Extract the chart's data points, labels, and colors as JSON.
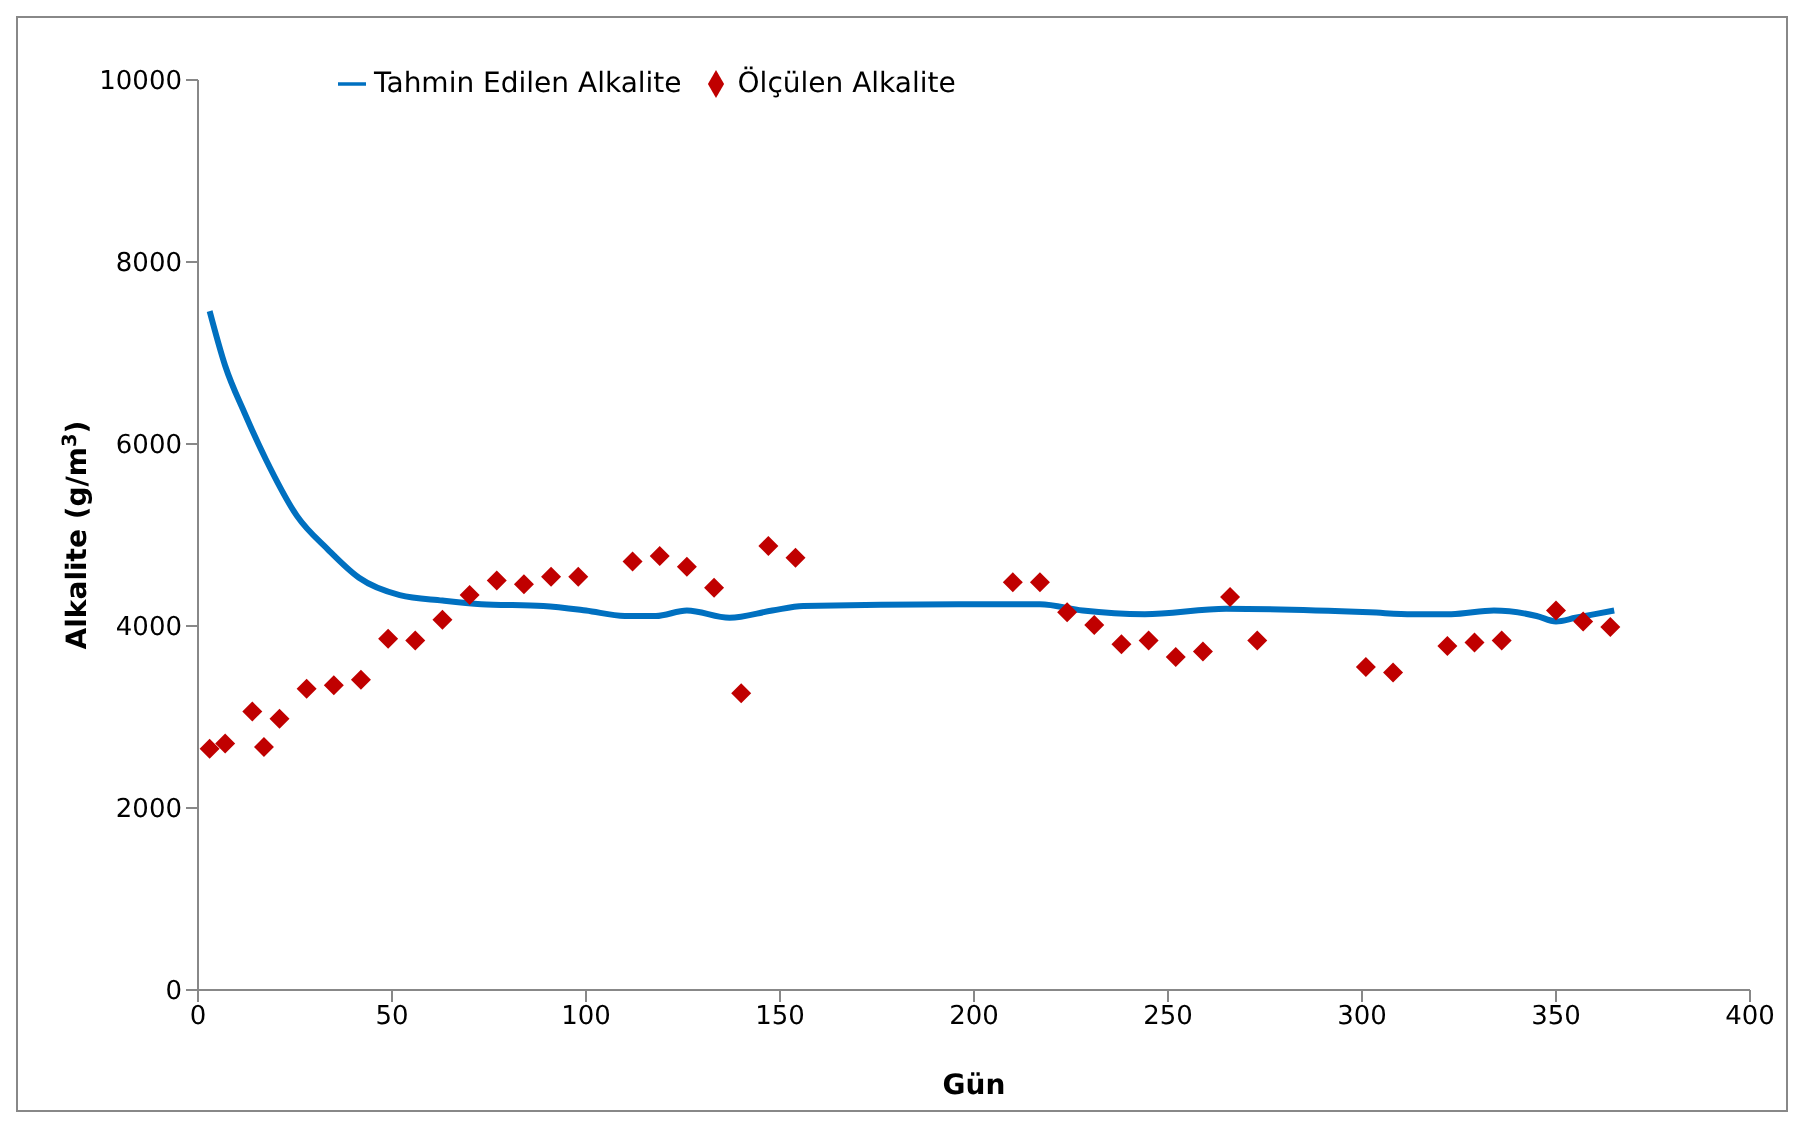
{
  "chart_data": {
    "type": "scatter",
    "xlabel": "Gün",
    "ylabel": "Alkalite (g/m$^{3}$)",
    "xlim": [
      0,
      400
    ],
    "xticks": [
      0,
      50,
      100,
      150,
      200,
      250,
      300,
      350,
      400
    ],
    "ylim": [
      0,
      10000
    ],
    "yticks": [
      0,
      2000,
      4000,
      6000,
      8000,
      10000
    ],
    "grid": false,
    "legend": "top left",
    "series": [
      {
        "name": "Tahmin Edilen Alkalite",
        "type": "line",
        "color": "#0070c0",
        "marker": "none",
        "line_style": "solid",
        "x": [
          3,
          7,
          12,
          17.5,
          25.5,
          33.5,
          41.5,
          52,
          63,
          73,
          89,
          100,
          110,
          118,
          126,
          137,
          148,
          156,
          196,
          217,
          228,
          244,
          265,
          302,
          313,
          323,
          334,
          345,
          350,
          355,
          365
        ],
        "values": [
          7460,
          6860,
          6340,
          5830,
          5210,
          4840,
          4530,
          4340,
          4280,
          4240,
          4220,
          4170,
          4110,
          4110,
          4170,
          4090,
          4170,
          4220,
          4240,
          4240,
          4170,
          4130,
          4190,
          4150,
          4130,
          4130,
          4170,
          4110,
          4050,
          4090,
          4170
        ]
      },
      {
        "name": "Ölçülen Alkalite",
        "color": "#c00000",
        "marker": "diamond",
        "x": [
          3,
          7,
          14,
          17,
          21,
          28,
          35,
          42,
          49,
          56,
          63,
          70,
          77,
          84,
          91,
          98,
          112,
          119,
          126,
          133,
          140,
          147,
          154,
          210,
          217,
          224,
          231,
          238,
          245,
          252,
          259,
          266,
          273,
          301,
          308,
          322,
          329,
          336,
          350,
          357,
          364
        ],
        "values": [
          2650,
          2710,
          3060,
          2670,
          2980,
          3310,
          3350,
          3410,
          3860,
          3840,
          4070,
          4340,
          4500,
          4460,
          4540,
          4540,
          4710,
          4770,
          4650,
          4420,
          3260,
          4880,
          4750,
          4480,
          4480,
          4150,
          4010,
          3800,
          3840,
          3660,
          3720,
          4320,
          3840,
          3550,
          3490,
          3780,
          3820,
          3840,
          4170,
          4050,
          3990
        ]
      }
    ]
  }
}
